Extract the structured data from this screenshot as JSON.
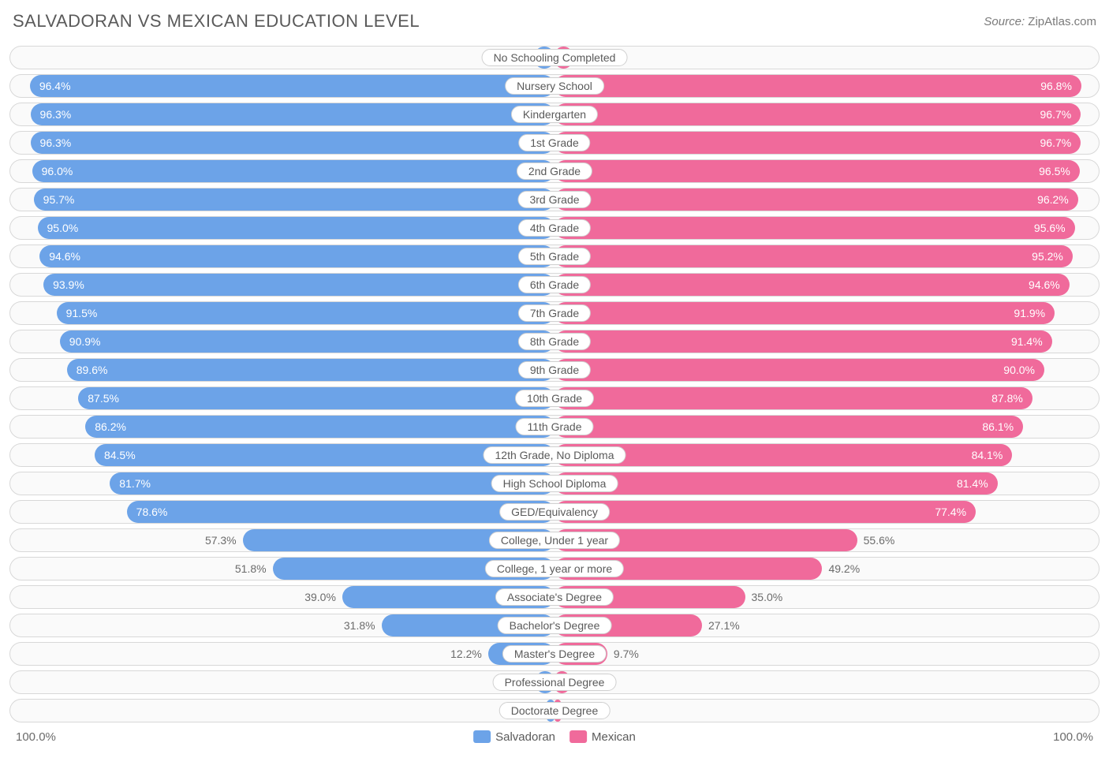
{
  "title": "SALVADORAN VS MEXICAN EDUCATION LEVEL",
  "source_label": "Source:",
  "source_value": "ZipAtlas.com",
  "chart": {
    "type": "diverging-bar",
    "axis_max": 100.0,
    "axis_left_label": "100.0%",
    "axis_right_label": "100.0%",
    "value_threshold_inside": 60,
    "colors": {
      "left_bar": "#6ca3e8",
      "right_bar": "#f06a9b",
      "row_border": "#d8d8d8",
      "row_bg": "#fafafa",
      "label_pill_bg": "#ffffff",
      "text_inside": "#ffffff",
      "text_outside": "#6b6b6b",
      "title": "#5a5a5a"
    },
    "left_series_name": "Salvadoran",
    "right_series_name": "Mexican",
    "categories": [
      "No Schooling Completed",
      "Nursery School",
      "Kindergarten",
      "1st Grade",
      "2nd Grade",
      "3rd Grade",
      "4th Grade",
      "5th Grade",
      "6th Grade",
      "7th Grade",
      "8th Grade",
      "9th Grade",
      "10th Grade",
      "11th Grade",
      "12th Grade, No Diploma",
      "High School Diploma",
      "GED/Equivalency",
      "College, Under 1 year",
      "College, 1 year or more",
      "Associate's Degree",
      "Bachelor's Degree",
      "Master's Degree",
      "Professional Degree",
      "Doctorate Degree"
    ],
    "left_values": [
      3.7,
      96.4,
      96.3,
      96.3,
      96.0,
      95.7,
      95.0,
      94.6,
      93.9,
      91.5,
      90.9,
      89.6,
      87.5,
      86.2,
      84.5,
      81.7,
      78.6,
      57.3,
      51.8,
      39.0,
      31.8,
      12.2,
      3.5,
      1.5
    ],
    "right_values": [
      3.3,
      96.8,
      96.7,
      96.7,
      96.5,
      96.2,
      95.6,
      95.2,
      94.6,
      91.9,
      91.4,
      90.0,
      87.8,
      86.1,
      84.1,
      81.4,
      77.4,
      55.6,
      49.2,
      35.0,
      27.1,
      9.7,
      2.7,
      1.2
    ]
  }
}
